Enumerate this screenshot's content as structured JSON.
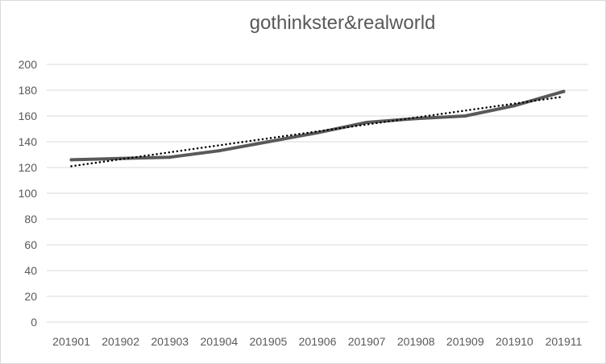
{
  "chart_data": {
    "type": "line",
    "title": "gothinkster&realworld",
    "xlabel": "",
    "ylabel": "",
    "categories": [
      "201901",
      "201902",
      "201903",
      "201904",
      "201905",
      "201906",
      "201907",
      "201908",
      "201909",
      "201910",
      "201911"
    ],
    "series": [
      {
        "values": [
          126,
          127,
          128,
          133,
          140,
          147,
          155,
          158,
          160,
          168,
          179
        ],
        "color": "#595959",
        "style": "solid"
      }
    ],
    "trendline": {
      "type": "linear",
      "values": [
        121,
        126.4,
        131.8,
        137.2,
        142.6,
        148,
        153.4,
        158.8,
        164.2,
        169.6,
        175
      ],
      "color": "#000000",
      "style": "dotted"
    },
    "ylim": [
      0,
      200
    ],
    "yticks": [
      0,
      20,
      40,
      60,
      80,
      100,
      120,
      140,
      160,
      180,
      200
    ],
    "grid": true,
    "legend": "none"
  }
}
